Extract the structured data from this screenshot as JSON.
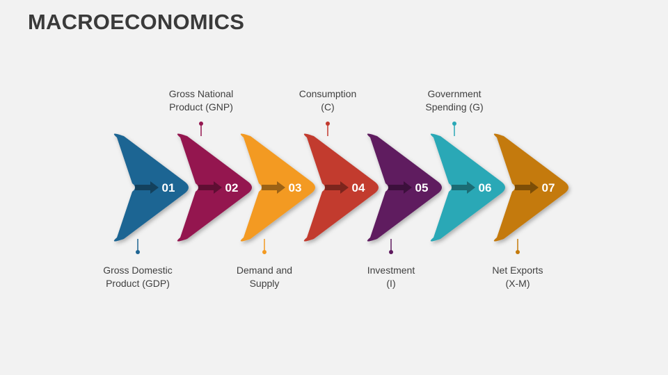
{
  "title": "MACROECONOMICS",
  "steps": [
    {
      "num": "01",
      "color": "#1f6593",
      "line1": "Gross Domestic",
      "line2": "Product (GDP)",
      "position": "bottom"
    },
    {
      "num": "02",
      "color": "#941650",
      "line1": "Gross National",
      "line2": "Product (GNP)",
      "position": "top"
    },
    {
      "num": "03",
      "color": "#f39a22",
      "line1": "Demand and",
      "line2": "Supply",
      "position": "bottom"
    },
    {
      "num": "04",
      "color": "#c23a2e",
      "line1": "Consumption",
      "line2": "(C)",
      "position": "top"
    },
    {
      "num": "05",
      "color": "#5e1a5e",
      "line1": "Investment",
      "line2": "(I)",
      "position": "bottom"
    },
    {
      "num": "06",
      "color": "#2aa8b6",
      "line1": "Government",
      "line2": "Spending (G)",
      "position": "top"
    },
    {
      "num": "07",
      "color": "#c47a0b",
      "line1": "Net Exports",
      "line2": "(X-M)",
      "position": "bottom"
    }
  ]
}
